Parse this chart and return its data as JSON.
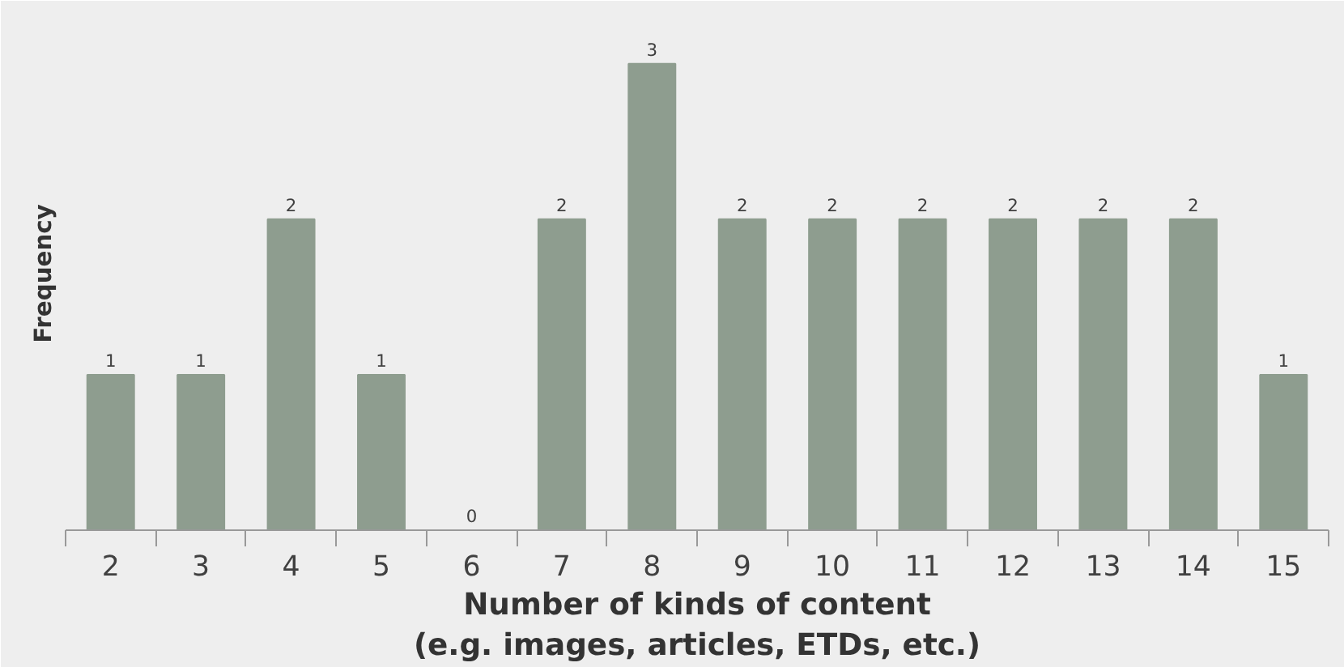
{
  "chart_data": {
    "type": "bar",
    "ylabel": "Frequency",
    "xlabel": "Number of kinds of content\n(e.g. images, articles, ETDs, etc.)",
    "categories": [
      "2",
      "3",
      "4",
      "5",
      "6",
      "7",
      "8",
      "9",
      "10",
      "11",
      "12",
      "13",
      "14",
      "15"
    ],
    "values": [
      1,
      1,
      2,
      1,
      0,
      2,
      3,
      2,
      2,
      2,
      2,
      2,
      2,
      1
    ],
    "color": "#8e9d8f",
    "data_labels": true,
    "grid": false
  }
}
